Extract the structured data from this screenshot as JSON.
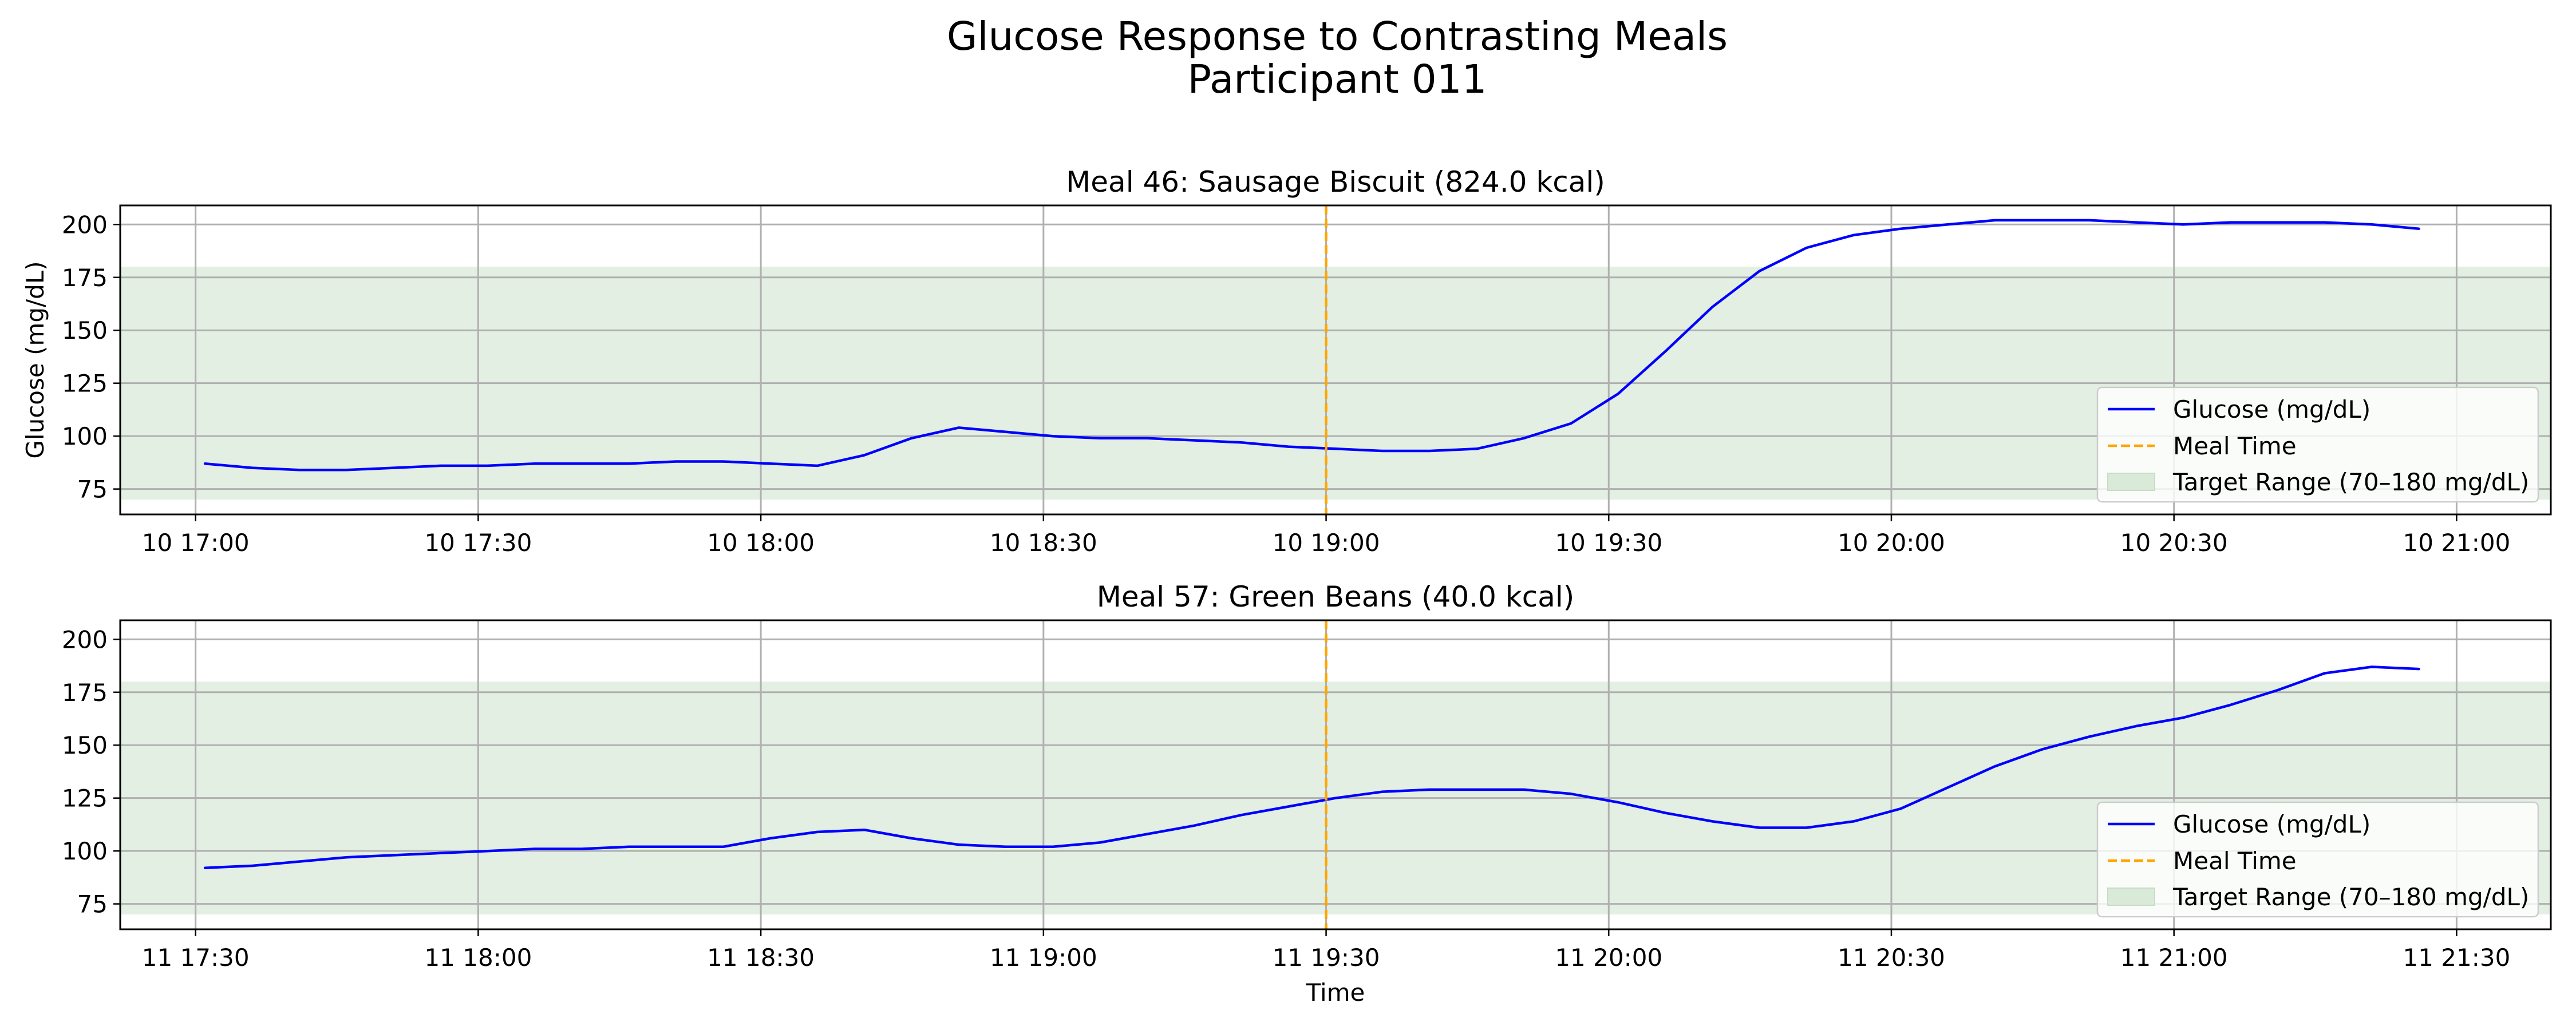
{
  "figure": {
    "title_line1": "Glucose Response to Contrasting Meals",
    "title_line2": "Participant 011"
  },
  "chart_data": [
    {
      "type": "line",
      "title": "Meal 46: Sausage Biscuit (824.0 kcal)",
      "xlabel": "",
      "ylabel": "Glucose (mg/dL)",
      "ylim": [
        63,
        209
      ],
      "xlim": [
        "2024-01-10 16:52",
        "2024-01-10 21:10"
      ],
      "yticks": [
        75,
        100,
        125,
        150,
        175,
        200
      ],
      "xticks": [
        {
          "t": "2024-01-10 17:00",
          "label": "10 17:00"
        },
        {
          "t": "2024-01-10 17:30",
          "label": "10 17:30"
        },
        {
          "t": "2024-01-10 18:00",
          "label": "10 18:00"
        },
        {
          "t": "2024-01-10 18:30",
          "label": "10 18:30"
        },
        {
          "t": "2024-01-10 19:00",
          "label": "10 19:00"
        },
        {
          "t": "2024-01-10 19:30",
          "label": "10 19:30"
        },
        {
          "t": "2024-01-10 20:00",
          "label": "10 20:00"
        },
        {
          "t": "2024-01-10 20:30",
          "label": "10 20:30"
        },
        {
          "t": "2024-01-10 21:00",
          "label": "10 21:00"
        }
      ],
      "meal_time": "2024-01-10 19:00",
      "target_range": [
        70,
        180
      ],
      "grid": true,
      "legend_position": "lower right",
      "legend": [
        "Glucose (mg/dL)",
        "Meal Time",
        "Target Range (70–180 mg/dL)"
      ],
      "colors": {
        "glucose": "#0000ff",
        "meal_time": "#ffa500",
        "target_range": "#d9ead9"
      },
      "series": [
        {
          "name": "Glucose (mg/dL)",
          "points": [
            [
              "2024-01-10 17:01",
              87
            ],
            [
              "2024-01-10 17:06",
              85
            ],
            [
              "2024-01-10 17:11",
              84
            ],
            [
              "2024-01-10 17:16",
              84
            ],
            [
              "2024-01-10 17:21",
              85
            ],
            [
              "2024-01-10 17:26",
              86
            ],
            [
              "2024-01-10 17:31",
              86
            ],
            [
              "2024-01-10 17:36",
              87
            ],
            [
              "2024-01-10 17:41",
              87
            ],
            [
              "2024-01-10 17:46",
              87
            ],
            [
              "2024-01-10 17:51",
              88
            ],
            [
              "2024-01-10 17:56",
              88
            ],
            [
              "2024-01-10 18:01",
              87
            ],
            [
              "2024-01-10 18:06",
              86
            ],
            [
              "2024-01-10 18:11",
              91
            ],
            [
              "2024-01-10 18:16",
              99
            ],
            [
              "2024-01-10 18:21",
              104
            ],
            [
              "2024-01-10 18:26",
              102
            ],
            [
              "2024-01-10 18:31",
              100
            ],
            [
              "2024-01-10 18:36",
              99
            ],
            [
              "2024-01-10 18:41",
              99
            ],
            [
              "2024-01-10 18:46",
              98
            ],
            [
              "2024-01-10 18:51",
              97
            ],
            [
              "2024-01-10 18:56",
              95
            ],
            [
              "2024-01-10 19:01",
              94
            ],
            [
              "2024-01-10 19:06",
              93
            ],
            [
              "2024-01-10 19:11",
              93
            ],
            [
              "2024-01-10 19:16",
              94
            ],
            [
              "2024-01-10 19:21",
              99
            ],
            [
              "2024-01-10 19:26",
              106
            ],
            [
              "2024-01-10 19:31",
              120
            ],
            [
              "2024-01-10 19:36",
              140
            ],
            [
              "2024-01-10 19:41",
              161
            ],
            [
              "2024-01-10 19:46",
              178
            ],
            [
              "2024-01-10 19:51",
              189
            ],
            [
              "2024-01-10 19:56",
              195
            ],
            [
              "2024-01-10 20:01",
              198
            ],
            [
              "2024-01-10 20:06",
              200
            ],
            [
              "2024-01-10 20:11",
              202
            ],
            [
              "2024-01-10 20:16",
              202
            ],
            [
              "2024-01-10 20:21",
              202
            ],
            [
              "2024-01-10 20:26",
              201
            ],
            [
              "2024-01-10 20:31",
              200
            ],
            [
              "2024-01-10 20:36",
              201
            ],
            [
              "2024-01-10 20:41",
              201
            ],
            [
              "2024-01-10 20:46",
              201
            ],
            [
              "2024-01-10 20:51",
              200
            ],
            [
              "2024-01-10 20:56",
              198
            ]
          ]
        }
      ]
    },
    {
      "type": "line",
      "title": "Meal 57: Green Beans (40.0 kcal)",
      "xlabel": "Time",
      "ylabel": "",
      "ylim": [
        63,
        209
      ],
      "xlim": [
        "2024-01-11 17:22",
        "2024-01-11 21:40"
      ],
      "yticks": [
        75,
        100,
        125,
        150,
        175,
        200
      ],
      "xticks": [
        {
          "t": "2024-01-11 17:30",
          "label": "11 17:30"
        },
        {
          "t": "2024-01-11 18:00",
          "label": "11 18:00"
        },
        {
          "t": "2024-01-11 18:30",
          "label": "11 18:30"
        },
        {
          "t": "2024-01-11 19:00",
          "label": "11 19:00"
        },
        {
          "t": "2024-01-11 19:30",
          "label": "11 19:30"
        },
        {
          "t": "2024-01-11 20:00",
          "label": "11 20:00"
        },
        {
          "t": "2024-01-11 20:30",
          "label": "11 20:30"
        },
        {
          "t": "2024-01-11 21:00",
          "label": "11 21:00"
        },
        {
          "t": "2024-01-11 21:30",
          "label": "11 21:30"
        }
      ],
      "meal_time": "2024-01-11 19:30",
      "target_range": [
        70,
        180
      ],
      "grid": true,
      "legend_position": "lower right",
      "legend": [
        "Glucose (mg/dL)",
        "Meal Time",
        "Target Range (70–180 mg/dL)"
      ],
      "colors": {
        "glucose": "#0000ff",
        "meal_time": "#ffa500",
        "target_range": "#d9ead9"
      },
      "series": [
        {
          "name": "Glucose (mg/dL)",
          "points": [
            [
              "2024-01-11 17:31",
              92
            ],
            [
              "2024-01-11 17:36",
              93
            ],
            [
              "2024-01-11 17:41",
              95
            ],
            [
              "2024-01-11 17:46",
              97
            ],
            [
              "2024-01-11 17:51",
              98
            ],
            [
              "2024-01-11 17:56",
              99
            ],
            [
              "2024-01-11 18:01",
              100
            ],
            [
              "2024-01-11 18:06",
              101
            ],
            [
              "2024-01-11 18:11",
              101
            ],
            [
              "2024-01-11 18:16",
              102
            ],
            [
              "2024-01-11 18:21",
              102
            ],
            [
              "2024-01-11 18:26",
              102
            ],
            [
              "2024-01-11 18:31",
              106
            ],
            [
              "2024-01-11 18:36",
              109
            ],
            [
              "2024-01-11 18:41",
              110
            ],
            [
              "2024-01-11 18:46",
              106
            ],
            [
              "2024-01-11 18:51",
              103
            ],
            [
              "2024-01-11 18:56",
              102
            ],
            [
              "2024-01-11 19:01",
              102
            ],
            [
              "2024-01-11 19:06",
              104
            ],
            [
              "2024-01-11 19:11",
              108
            ],
            [
              "2024-01-11 19:16",
              112
            ],
            [
              "2024-01-11 19:21",
              117
            ],
            [
              "2024-01-11 19:26",
              121
            ],
            [
              "2024-01-11 19:31",
              125
            ],
            [
              "2024-01-11 19:36",
              128
            ],
            [
              "2024-01-11 19:41",
              129
            ],
            [
              "2024-01-11 19:46",
              129
            ],
            [
              "2024-01-11 19:51",
              129
            ],
            [
              "2024-01-11 19:56",
              127
            ],
            [
              "2024-01-11 20:01",
              123
            ],
            [
              "2024-01-11 20:06",
              118
            ],
            [
              "2024-01-11 20:11",
              114
            ],
            [
              "2024-01-11 20:16",
              111
            ],
            [
              "2024-01-11 20:21",
              111
            ],
            [
              "2024-01-11 20:26",
              114
            ],
            [
              "2024-01-11 20:31",
              120
            ],
            [
              "2024-01-11 20:36",
              130
            ],
            [
              "2024-01-11 20:41",
              140
            ],
            [
              "2024-01-11 20:46",
              148
            ],
            [
              "2024-01-11 20:51",
              154
            ],
            [
              "2024-01-11 20:56",
              159
            ],
            [
              "2024-01-11 21:01",
              163
            ],
            [
              "2024-01-11 21:06",
              169
            ],
            [
              "2024-01-11 21:11",
              176
            ],
            [
              "2024-01-11 21:16",
              184
            ],
            [
              "2024-01-11 21:21",
              187
            ],
            [
              "2024-01-11 21:26",
              186
            ]
          ]
        }
      ]
    }
  ]
}
